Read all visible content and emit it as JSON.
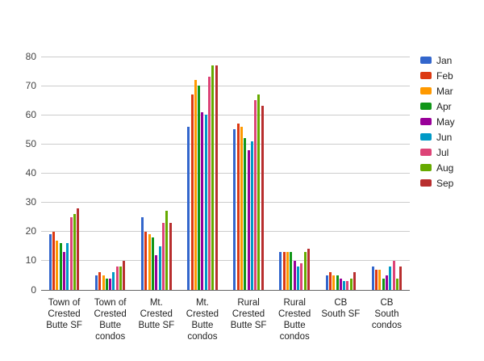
{
  "chart_data": {
    "type": "bar",
    "title": "",
    "xlabel": "",
    "ylabel": "",
    "grid": true,
    "legend_position": "right",
    "background_color": "#ffffff",
    "gridline_color": "#cccccc",
    "baseline_color": "#666666",
    "axis_text_color": "#444444",
    "y_ticks": [
      0,
      10,
      20,
      30,
      40,
      50,
      60,
      70,
      80
    ],
    "ylim": [
      0,
      80
    ],
    "categories": [
      {
        "label": "Town of Crested Butte SF",
        "lines": [
          "Town of",
          "Crested",
          "Butte SF"
        ]
      },
      {
        "label": "Town of Crested Butte condos",
        "lines": [
          "Town of",
          "Crested",
          "Butte",
          "condos"
        ]
      },
      {
        "label": "Mt. Crested Butte SF",
        "lines": [
          "Mt.",
          "Crested",
          "Butte SF"
        ]
      },
      {
        "label": "Mt. Crested Butte condos",
        "lines": [
          "Mt.",
          "Crested",
          "Butte",
          "condos"
        ]
      },
      {
        "label": "Rural Crested Butte SF",
        "lines": [
          "Rural",
          "Crested",
          "Butte SF"
        ]
      },
      {
        "label": "Rural Crested Butte condos",
        "lines": [
          "Rural",
          "Crested",
          "Butte",
          "condos"
        ]
      },
      {
        "label": "CB South SF",
        "lines": [
          "CB",
          "South SF"
        ]
      },
      {
        "label": "CB South condos",
        "lines": [
          "CB",
          "South",
          "condos"
        ]
      }
    ],
    "series": [
      {
        "name": "Jan",
        "color": "#3366CC",
        "values": [
          19,
          5,
          25,
          56,
          55,
          13,
          5,
          8
        ]
      },
      {
        "name": "Feb",
        "color": "#DC3912",
        "values": [
          20,
          6,
          20,
          67,
          57,
          13,
          6,
          7
        ]
      },
      {
        "name": "Mar",
        "color": "#FF9900",
        "values": [
          17,
          5,
          19,
          72,
          56,
          13,
          5,
          7
        ]
      },
      {
        "name": "Apr",
        "color": "#109618",
        "values": [
          16,
          4,
          18,
          70,
          52,
          13,
          5,
          4
        ]
      },
      {
        "name": "May",
        "color": "#990099",
        "values": [
          13,
          4,
          12,
          61,
          48,
          10,
          4,
          5
        ]
      },
      {
        "name": "Jun",
        "color": "#0099C6",
        "values": [
          16,
          6,
          15,
          60,
          51,
          8,
          3,
          8
        ]
      },
      {
        "name": "Jul",
        "color": "#DD4477",
        "values": [
          25,
          8,
          23,
          73,
          65,
          9,
          3,
          10
        ]
      },
      {
        "name": "Aug",
        "color": "#66AA00",
        "values": [
          26,
          8,
          27,
          77,
          67,
          13,
          4,
          4
        ]
      },
      {
        "name": "Sep",
        "color": "#B82E2E",
        "values": [
          28,
          10,
          23,
          77,
          63,
          14,
          6,
          8
        ]
      }
    ]
  }
}
